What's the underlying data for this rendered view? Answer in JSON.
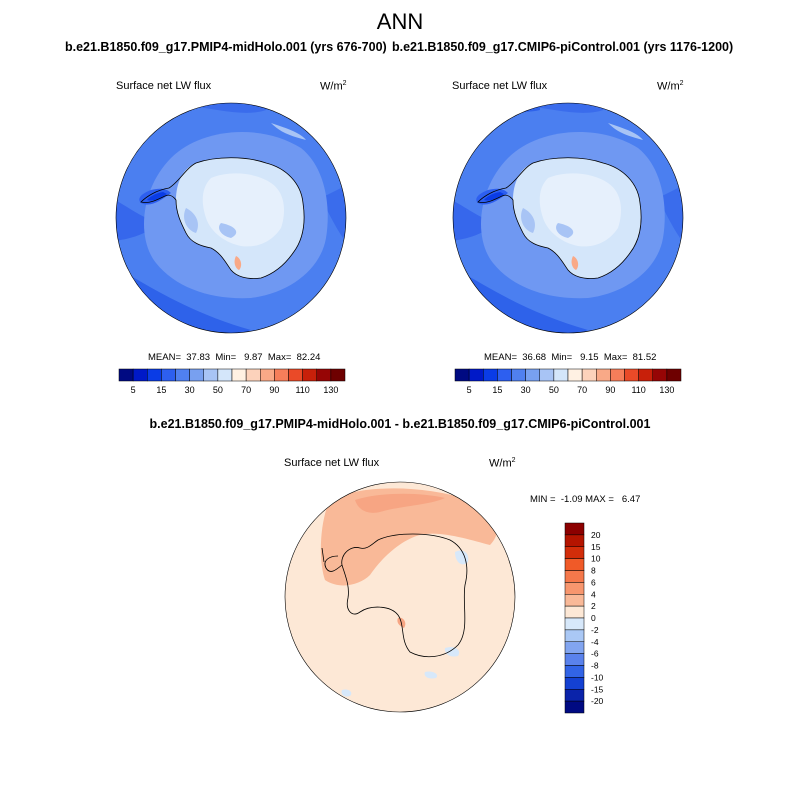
{
  "title": "ANN",
  "panels": [
    {
      "id": "left",
      "case_title": "b.e21.B1850.f09_g17.PMIP4-midHolo.001 (yrs 676-700)",
      "variable": "Surface net LW flux",
      "units_base": "W/m",
      "units_exp": "2",
      "stats": "MEAN=  37.83  Min=   9.87  Max=  82.24"
    },
    {
      "id": "right",
      "case_title": "b.e21.B1850.f09_g17.CMIP6-piControl.001 (yrs 1176-1200)",
      "variable": "Surface net LW flux",
      "units_base": "W/m",
      "units_exp": "2",
      "stats": "MEAN=  36.68  Min=   9.15  Max=  81.52"
    }
  ],
  "colorbar_top": {
    "colors": [
      "#000a82",
      "#0019c8",
      "#0a3ce6",
      "#2d5ff0",
      "#5080f0",
      "#78a0f0",
      "#a8c4f5",
      "#d4e6fa",
      "#fff1e3",
      "#fcd2bb",
      "#f9a987",
      "#f67e5a",
      "#ea4a28",
      "#c8200a",
      "#960505",
      "#6e0000"
    ],
    "tick_labels": [
      "5",
      "15",
      "30",
      "50",
      "70",
      "90",
      "110",
      "130"
    ]
  },
  "difference": {
    "title": "b.e21.B1850.f09_g17.PMIP4-midHolo.001 - b.e21.B1850.f09_g17.CMIP6-piControl.001",
    "variable": "Surface net LW flux",
    "units_base": "W/m",
    "units_exp": "2",
    "stats": "MIN =  -1.09 MAX =   6.47",
    "colorbar": {
      "colors": [
        "#8c0000",
        "#b41400",
        "#d22d0a",
        "#f05a28",
        "#f5784b",
        "#f7966e",
        "#f9b998",
        "#fde8d6",
        "#d7e8fa",
        "#aac8f5",
        "#82a5f0",
        "#5a82ec",
        "#3264e6",
        "#1441d2",
        "#0a23aa",
        "#000a82"
      ],
      "tick_labels": [
        "20",
        "15",
        "10",
        "8",
        "6",
        "4",
        "2",
        "0",
        "-2",
        "-4",
        "-6",
        "-8",
        "-10",
        "-15",
        "-20"
      ]
    }
  }
}
